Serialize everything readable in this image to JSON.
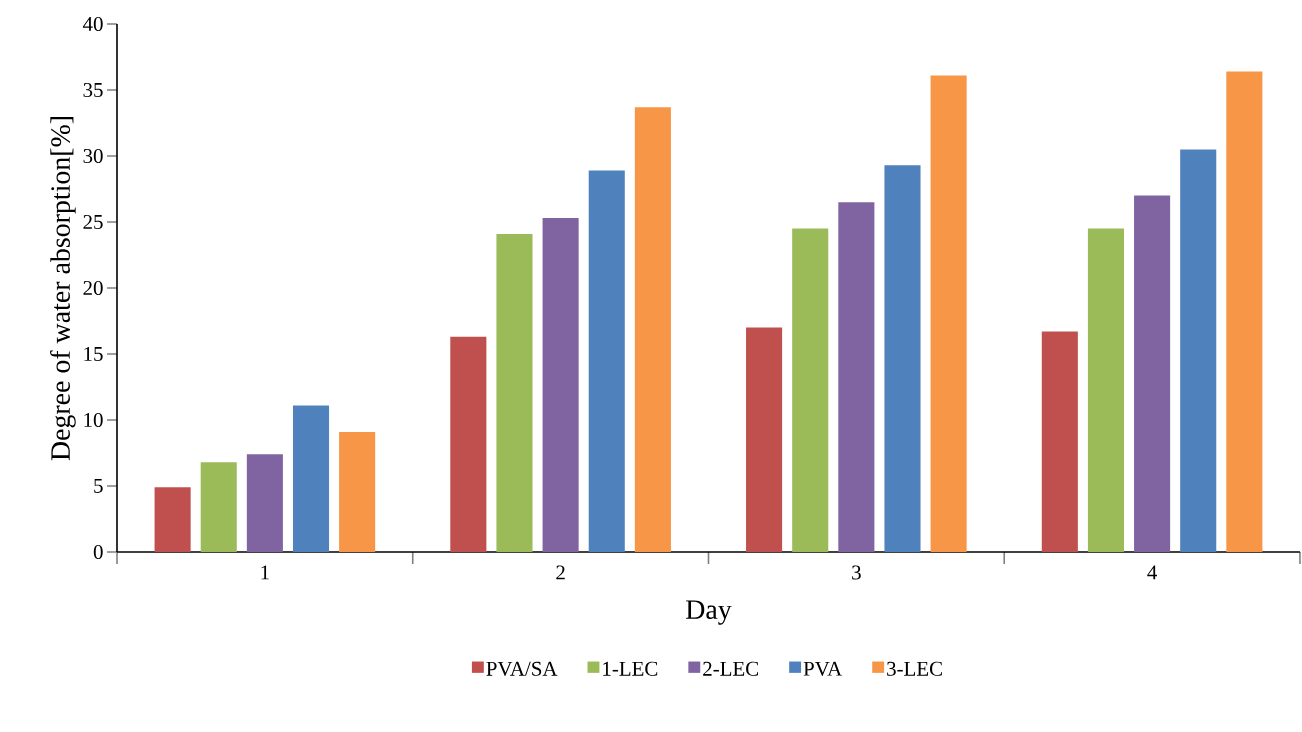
{
  "chart_data": {
    "type": "bar",
    "xlabel": "Day",
    "ylabel": "Degree of water absorption[%]",
    "categories": [
      "1",
      "2",
      "3",
      "4"
    ],
    "series": [
      {
        "name": "PVA/SA",
        "color": "#c0504d",
        "values": [
          4.9,
          16.3,
          17.0,
          16.7
        ]
      },
      {
        "name": "1-LEC",
        "color": "#9bbb59",
        "values": [
          6.8,
          24.1,
          24.5,
          24.5
        ]
      },
      {
        "name": "2-LEC",
        "color": "#8064a2",
        "values": [
          7.4,
          25.3,
          26.5,
          27.0
        ]
      },
      {
        "name": "PVA",
        "color": "#4f81bd",
        "values": [
          11.1,
          28.9,
          29.3,
          30.5
        ]
      },
      {
        "name": "3-LEC",
        "color": "#f79646",
        "values": [
          9.1,
          33.7,
          36.1,
          36.4
        ]
      }
    ],
    "ylim": [
      0,
      40
    ],
    "yticks": [
      0,
      5,
      10,
      15,
      20,
      25,
      30,
      35,
      40
    ],
    "legend": "bottom",
    "grid": false
  }
}
